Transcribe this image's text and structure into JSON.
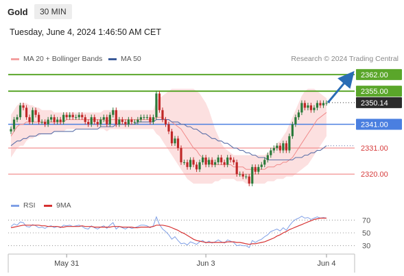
{
  "header": {
    "asset": "Gold",
    "timeframe": "30 MIN",
    "datetime": "Tuesday, June 4, 2024 1:46:50 AM CET"
  },
  "legend": {
    "bb_label": "MA 20 + Bollinger Bands",
    "ma50_label": "MA 50",
    "credit": "Research © 2024 Trading Central"
  },
  "rsi_legend": {
    "rsi_label": "RSI",
    "ma_label": "9MA"
  },
  "colors": {
    "resistance": "#5aa62a",
    "support": "#f29090",
    "pivot": "#4a7fe0",
    "arrow": "#2a6db5",
    "bull": "#2a7a3a",
    "bear": "#c02828",
    "band": "#fcdada",
    "ma20": "#f08a8a",
    "ma50": "#5a6fa8",
    "rsi": "#7f9fe6",
    "rsi_ma": "#d63030"
  },
  "chart_data": {
    "type": "candlestick",
    "title": "",
    "xlabel": "",
    "ylabel": "",
    "ylim": [
      2314,
      2366
    ],
    "x_ticks": [
      "May 31",
      "Jun 3",
      "Jun 4"
    ],
    "levels": [
      {
        "value": 2362.0,
        "label": "2362.00",
        "kind": "resistance"
      },
      {
        "value": 2355.0,
        "label": "2355.00",
        "kind": "resistance"
      },
      {
        "value": 2350.14,
        "label": "2350.14",
        "kind": "last"
      },
      {
        "value": 2341.0,
        "label": "2341.00",
        "kind": "pivot"
      },
      {
        "value": 2331.0,
        "label": "2331.00",
        "kind": "support"
      },
      {
        "value": 2320.0,
        "label": "2320.00",
        "kind": "support"
      }
    ],
    "closes": [
      2339,
      2343,
      2344,
      2349,
      2348,
      2344,
      2342,
      2347,
      2345,
      2342,
      2342,
      2341,
      2343,
      2344,
      2342,
      2343,
      2342,
      2345,
      2344,
      2345,
      2344,
      2344,
      2345,
      2344,
      2342,
      2341,
      2344,
      2342,
      2341,
      2343,
      2344,
      2341,
      2345,
      2347,
      2341,
      2343,
      2342,
      2341,
      2343,
      2342,
      2342,
      2343,
      2344,
      2344,
      2344,
      2342,
      2344,
      2354,
      2347,
      2343,
      2341,
      2338,
      2333,
      2335,
      2331,
      2325,
      2325,
      2323,
      2326,
      2324,
      2322,
      2325,
      2327,
      2324,
      2326,
      2324,
      2325,
      2327,
      2325,
      2324,
      2327,
      2326,
      2325,
      2320,
      2320,
      2319,
      2319,
      2316,
      2323,
      2321,
      2323,
      2324,
      2326,
      2328,
      2330,
      2331,
      2332,
      2330,
      2333,
      2330,
      2336,
      2341,
      2344,
      2346,
      2350,
      2348,
      2349,
      2347,
      2348,
      2350,
      2349,
      2350,
      2350
    ],
    "ma20": [
      2336,
      2338,
      2340,
      2341,
      2341,
      2342,
      2342,
      2342,
      2342,
      2342,
      2342,
      2342,
      2342,
      2342,
      2342,
      2342,
      2342,
      2342,
      2343,
      2343,
      2343,
      2343,
      2343,
      2343,
      2343,
      2343,
      2343,
      2343,
      2343,
      2343,
      2343,
      2342,
      2343,
      2343,
      2343,
      2343,
      2343,
      2343,
      2343,
      2343,
      2343,
      2343,
      2343,
      2343,
      2343,
      2343,
      2343,
      2344,
      2344,
      2344,
      2343,
      2343,
      2342,
      2341,
      2340,
      2339,
      2337,
      2335,
      2333,
      2331,
      2330,
      2328,
      2327,
      2326,
      2325,
      2324,
      2324,
      2324,
      2324,
      2324,
      2324,
      2324,
      2323,
      2323,
      2323,
      2323,
      2322,
      2322,
      2322,
      2322,
      2322,
      2322,
      2322,
      2323,
      2323,
      2323,
      2324,
      2324,
      2325,
      2325,
      2326,
      2327,
      2329,
      2331,
      2333,
      2335,
      2337,
      2339,
      2341,
      2343,
      2344,
      2345,
      2346
    ],
    "bb_upper": [
      2345,
      2347,
      2349,
      2350,
      2350,
      2350,
      2349,
      2349,
      2348,
      2348,
      2347,
      2347,
      2347,
      2347,
      2346,
      2346,
      2346,
      2346,
      2346,
      2346,
      2346,
      2346,
      2346,
      2346,
      2346,
      2346,
      2346,
      2346,
      2346,
      2346,
      2347,
      2347,
      2347,
      2347,
      2347,
      2347,
      2347,
      2347,
      2347,
      2347,
      2347,
      2347,
      2347,
      2347,
      2347,
      2347,
      2347,
      2351,
      2352,
      2353,
      2354,
      2355,
      2356,
      2356,
      2356,
      2356,
      2356,
      2356,
      2356,
      2356,
      2355,
      2354,
      2352,
      2350,
      2347,
      2343,
      2339,
      2336,
      2333,
      2331,
      2330,
      2329,
      2328,
      2328,
      2328,
      2328,
      2328,
      2328,
      2328,
      2328,
      2328,
      2328,
      2328,
      2329,
      2330,
      2331,
      2333,
      2334,
      2336,
      2338,
      2341,
      2344,
      2347,
      2350,
      2353,
      2355,
      2356,
      2356,
      2356,
      2355,
      2354,
      2353,
      2352
    ],
    "bb_lower": [
      2327,
      2329,
      2331,
      2332,
      2332,
      2334,
      2335,
      2335,
      2336,
      2336,
      2337,
      2337,
      2337,
      2337,
      2338,
      2338,
      2338,
      2338,
      2339,
      2339,
      2339,
      2339,
      2339,
      2339,
      2339,
      2339,
      2339,
      2339,
      2339,
      2339,
      2339,
      2338,
      2339,
      2339,
      2339,
      2339,
      2339,
      2339,
      2339,
      2339,
      2339,
      2339,
      2339,
      2339,
      2339,
      2339,
      2339,
      2337,
      2336,
      2334,
      2332,
      2330,
      2328,
      2326,
      2324,
      2322,
      2320,
      2318,
      2317,
      2316,
      2316,
      2316,
      2316,
      2316,
      2316,
      2316,
      2317,
      2317,
      2318,
      2318,
      2318,
      2318,
      2318,
      2317,
      2317,
      2317,
      2316,
      2316,
      2316,
      2316,
      2316,
      2316,
      2316,
      2317,
      2317,
      2317,
      2318,
      2318,
      2318,
      2319,
      2319,
      2319,
      2320,
      2321,
      2322,
      2323,
      2324,
      2326,
      2328,
      2330,
      2332,
      2334,
      2336
    ],
    "ma50": [
      2332,
      2333,
      2334,
      2334,
      2335,
      2335,
      2336,
      2336,
      2336,
      2337,
      2337,
      2337,
      2337,
      2337,
      2338,
      2338,
      2338,
      2338,
      2338,
      2338,
      2338,
      2339,
      2339,
      2339,
      2339,
      2339,
      2339,
      2339,
      2339,
      2340,
      2340,
      2340,
      2340,
      2340,
      2341,
      2341,
      2341,
      2341,
      2341,
      2341,
      2341,
      2342,
      2342,
      2342,
      2342,
      2342,
      2342,
      2343,
      2343,
      2343,
      2343,
      2343,
      2342,
      2342,
      2342,
      2341,
      2341,
      2340,
      2340,
      2339,
      2339,
      2338,
      2337,
      2337,
      2336,
      2335,
      2335,
      2334,
      2334,
      2333,
      2333,
      2332,
      2331,
      2331,
      2330,
      2330,
      2329,
      2329,
      2328,
      2328,
      2327,
      2327,
      2327,
      2326,
      2326,
      2326,
      2326,
      2326,
      2326,
      2326,
      2326,
      2326,
      2327,
      2327,
      2327,
      2328,
      2328,
      2329,
      2329,
      2330,
      2330,
      2331,
      2332
    ],
    "projection": {
      "from": 2350.14,
      "to": 2362.0
    },
    "rsi": {
      "levels": [
        70,
        50,
        30
      ],
      "ylim": [
        20,
        80
      ],
      "rsi_values": [
        60,
        64,
        62,
        67,
        66,
        60,
        59,
        63,
        61,
        58,
        59,
        57,
        60,
        61,
        58,
        60,
        58,
        62,
        61,
        62,
        60,
        61,
        62,
        60,
        57,
        56,
        61,
        58,
        56,
        59,
        61,
        57,
        62,
        66,
        56,
        60,
        58,
        56,
        59,
        57,
        58,
        60,
        62,
        62,
        61,
        58,
        61,
        75,
        63,
        56,
        52,
        47,
        40,
        44,
        38,
        33,
        34,
        31,
        36,
        34,
        32,
        36,
        38,
        34,
        37,
        34,
        36,
        39,
        36,
        34,
        39,
        37,
        35,
        30,
        31,
        30,
        30,
        27,
        38,
        35,
        38,
        40,
        44,
        47,
        52,
        54,
        56,
        53,
        58,
        54,
        61,
        67,
        71,
        73,
        76,
        73,
        74,
        71,
        73,
        75,
        73,
        74,
        73
      ],
      "rsi_ma": [
        58,
        59,
        60,
        61,
        62,
        62,
        62,
        62,
        62,
        62,
        61,
        61,
        60,
        60,
        60,
        60,
        59,
        59,
        60,
        60,
        60,
        60,
        60,
        61,
        60,
        60,
        60,
        59,
        59,
        59,
        59,
        59,
        59,
        60,
        60,
        60,
        59,
        59,
        59,
        59,
        58,
        58,
        59,
        59,
        59,
        59,
        60,
        62,
        62,
        62,
        61,
        60,
        58,
        56,
        54,
        51,
        49,
        46,
        43,
        40,
        38,
        37,
        36,
        35,
        35,
        35,
        35,
        35,
        35,
        35,
        36,
        36,
        36,
        35,
        35,
        34,
        33,
        32,
        33,
        33,
        34,
        35,
        36,
        38,
        40,
        42,
        45,
        47,
        50,
        52,
        55,
        57,
        59,
        61,
        63,
        65,
        67,
        69,
        71,
        72,
        73,
        73,
        73
      ]
    }
  }
}
